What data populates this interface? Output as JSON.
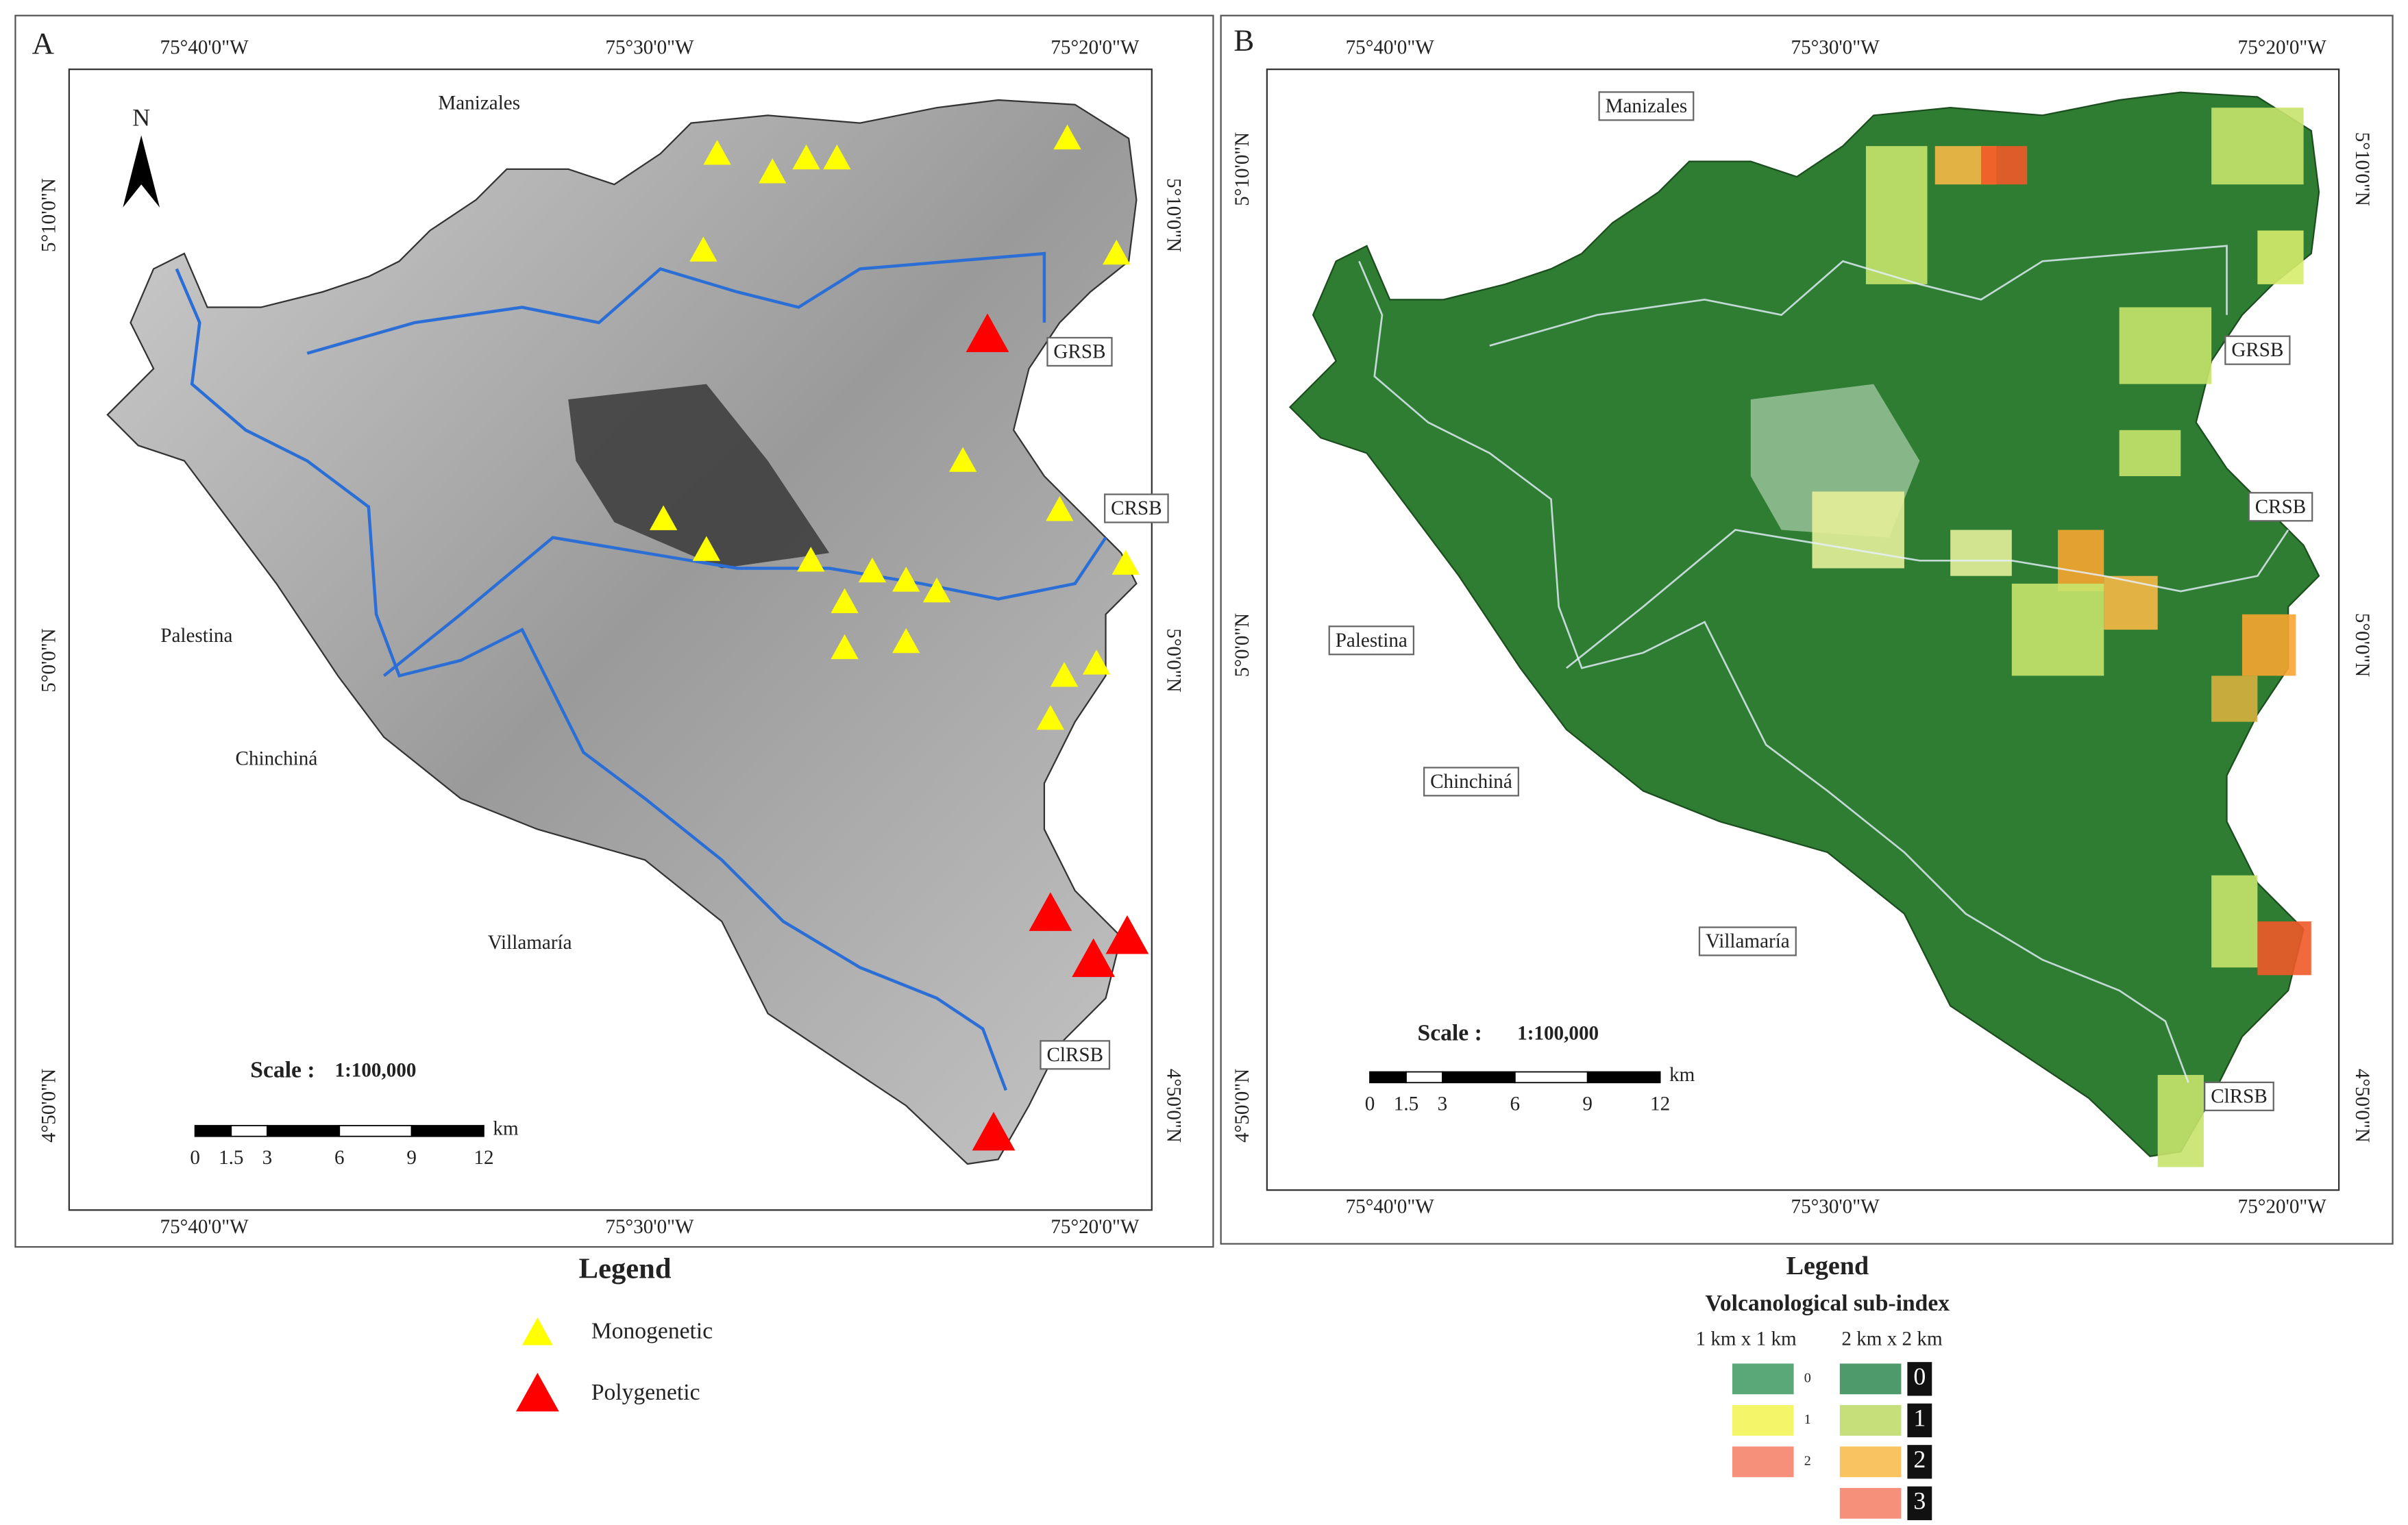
{
  "panels": [
    {
      "label": "A",
      "top_ticks": [
        "75°40'0\"W",
        "75°30'0\"W",
        "75°20'0\"W"
      ],
      "bottom_ticks": [
        "75°40'0\"W",
        "75°30'0\"W",
        "75°20'0\"W"
      ],
      "left_ticks": [
        "5°10'0\"N",
        "5°0'0\"N",
        "4°50'0\"N"
      ],
      "right_ticks": [
        "5°10'0\"N",
        "5°0'0\"N",
        "4°50'0\"N"
      ],
      "north": "N",
      "places": [
        "Manizales",
        "Palestina",
        "Chinchiná",
        "Villamaría"
      ],
      "subbasins": [
        "GRSB",
        "CRSB",
        "ClRSB"
      ],
      "scale_label": "Scale :",
      "scale_value": "1:100,000",
      "scale_ticks": [
        "0",
        "1.5",
        "3",
        "6",
        "9",
        "12"
      ],
      "scale_unit": "km"
    },
    {
      "label": "B",
      "top_ticks": [
        "75°40'0\"W",
        "75°30'0\"W",
        "75°20'0\"W"
      ],
      "bottom_ticks": [
        "75°40'0\"W",
        "75°30'0\"W",
        "75°20'0\"W"
      ],
      "left_ticks": [
        "5°10'0\"N",
        "5°0'0\"N",
        "4°50'0\"N"
      ],
      "right_ticks": [
        "5°10'0\"N",
        "5°0'0\"N",
        "4°50'0\"N"
      ],
      "places": [
        "Manizales",
        "Palestina",
        "Chinchiná",
        "Villamaría"
      ],
      "subbasins": [
        "GRSB",
        "CRSB",
        "ClRSB"
      ],
      "scale_label": "Scale :",
      "scale_value": "1:100,000",
      "scale_ticks": [
        "0",
        "1.5",
        "3",
        "6",
        "9",
        "12"
      ],
      "scale_unit": "km"
    }
  ],
  "legend_a": {
    "title": "Legend",
    "items": [
      "Monogenetic",
      "Polygenetic"
    ]
  },
  "legend_b": {
    "title": "Legend",
    "subtitle": "Volcanological sub-index",
    "col1": "1 km x 1 km",
    "col2": "2 km x 2 km",
    "small": [
      "0",
      "1",
      "2"
    ],
    "large": [
      "0",
      "1",
      "2",
      "3"
    ]
  }
}
